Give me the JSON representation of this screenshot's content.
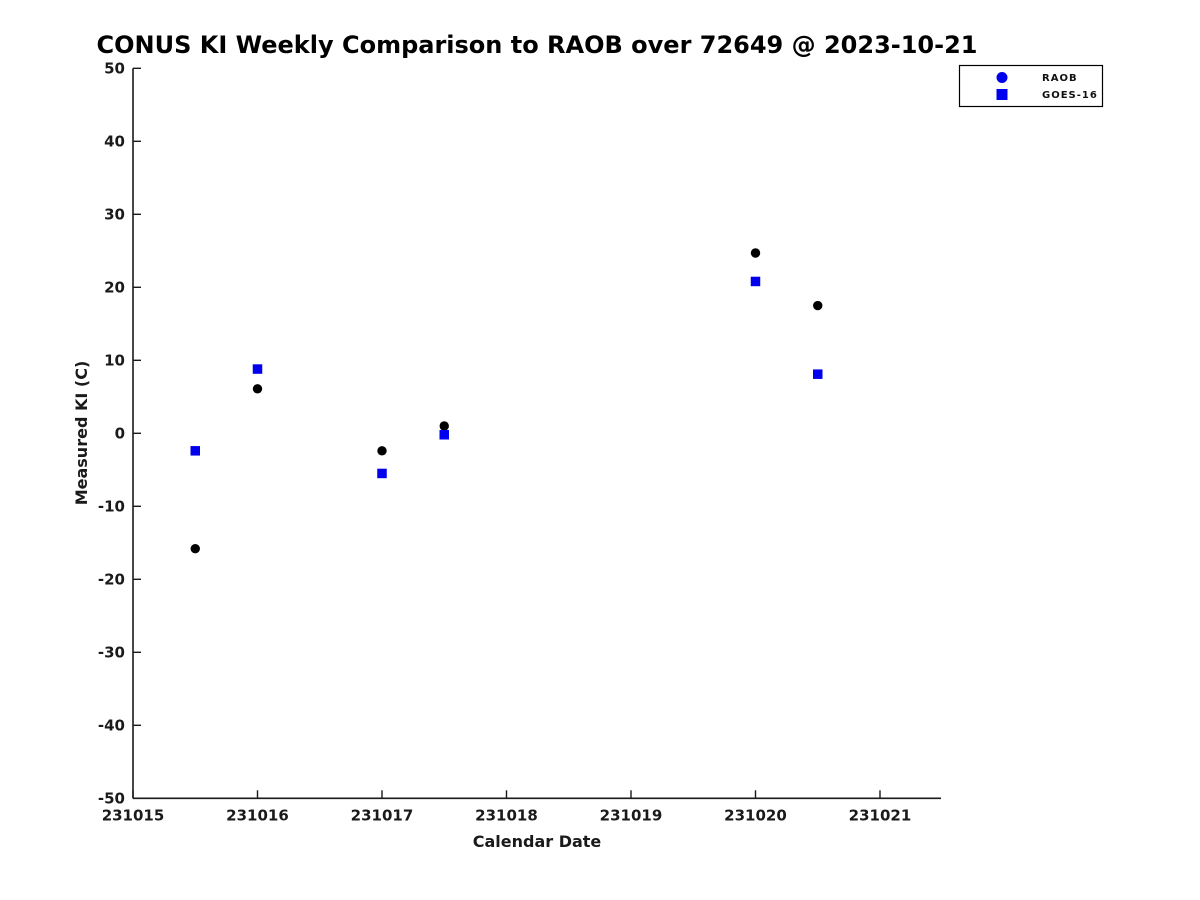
{
  "title": "CONUS KI Weekly Comparison to RAOB over 72649 @ 2023-10-21",
  "chart_data": {
    "type": "scatter",
    "title": "CONUS KI Weekly Comparison to RAOB over 72649 @ 2023-10-21",
    "xlabel": "Calendar Date",
    "ylabel": "Measured KI (C)",
    "xlim": [
      231015,
      231021.49
    ],
    "ylim": [
      -50,
      50
    ],
    "x_ticks": [
      231015,
      231016,
      231017,
      231018,
      231019,
      231020,
      231021
    ],
    "y_ticks": [
      50,
      40,
      30,
      20,
      10,
      0,
      -10,
      -20,
      -30,
      -40,
      -50
    ],
    "grid": false,
    "legend_position": "top-right",
    "series": [
      {
        "name": "RAOB",
        "marker": "circle",
        "color": "#000000",
        "legend_color": "#0000ee",
        "points": [
          [
            231015.5,
            -15.8
          ],
          [
            231016.0,
            6.1
          ],
          [
            231017.0,
            -2.4
          ],
          [
            231017.5,
            1.0
          ],
          [
            231020.0,
            24.7
          ],
          [
            231020.5,
            17.5
          ]
        ]
      },
      {
        "name": "GOES-16",
        "marker": "square",
        "color": "#0000ee",
        "legend_color": "#0000ee",
        "points": [
          [
            231015.5,
            -2.4
          ],
          [
            231016.0,
            8.8
          ],
          [
            231017.0,
            -5.5
          ],
          [
            231017.5,
            -0.2
          ],
          [
            231020.0,
            20.8
          ],
          [
            231020.5,
            8.1
          ]
        ]
      }
    ]
  }
}
